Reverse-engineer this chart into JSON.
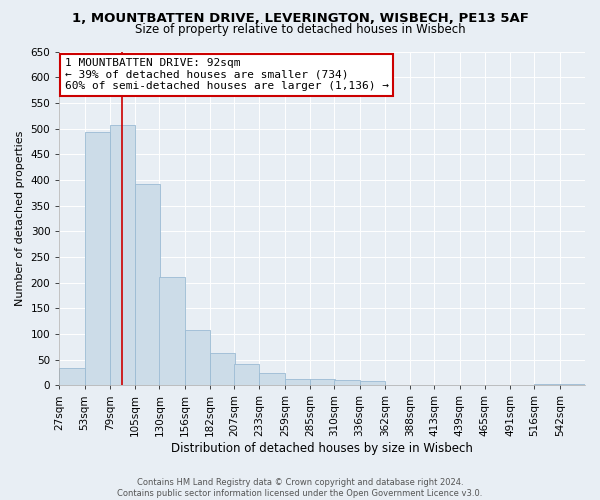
{
  "title": "1, MOUNTBATTEN DRIVE, LEVERINGTON, WISBECH, PE13 5AF",
  "subtitle": "Size of property relative to detached houses in Wisbech",
  "xlabel": "Distribution of detached houses by size in Wisbech",
  "ylabel": "Number of detached properties",
  "footer_line1": "Contains HM Land Registry data © Crown copyright and database right 2024.",
  "footer_line2": "Contains public sector information licensed under the Open Government Licence v3.0.",
  "bar_labels": [
    "27sqm",
    "53sqm",
    "79sqm",
    "105sqm",
    "130sqm",
    "156sqm",
    "182sqm",
    "207sqm",
    "233sqm",
    "259sqm",
    "285sqm",
    "310sqm",
    "336sqm",
    "362sqm",
    "388sqm",
    "413sqm",
    "439sqm",
    "465sqm",
    "491sqm",
    "516sqm",
    "542sqm"
  ],
  "bar_values": [
    33,
    493,
    507,
    392,
    210,
    107,
    62,
    42,
    23,
    13,
    13,
    10,
    8,
    0,
    0,
    0,
    0,
    0,
    0,
    2,
    2
  ],
  "bar_color": "#ccdce8",
  "bar_edge_color": "#9bbbd4",
  "annotation_line1": "1 MOUNTBATTEN DRIVE: 92sqm",
  "annotation_line2": "← 39% of detached houses are smaller (734)",
  "annotation_line3": "60% of semi-detached houses are larger (1,136) →",
  "annotation_box_color": "#ffffff",
  "annotation_box_edge_color": "#cc0000",
  "property_line_color": "#cc0000",
  "property_size": 92,
  "ylim": [
    0,
    650
  ],
  "yticks": [
    0,
    50,
    100,
    150,
    200,
    250,
    300,
    350,
    400,
    450,
    500,
    550,
    600,
    650
  ],
  "background_color": "#e8eef4",
  "plot_bg_color": "#e8eef4",
  "title_fontsize": 9.5,
  "subtitle_fontsize": 8.5,
  "xlabel_fontsize": 8.5,
  "ylabel_fontsize": 8,
  "tick_fontsize": 7.5,
  "annotation_fontsize": 8,
  "footer_fontsize": 6,
  "bin_width": 26
}
